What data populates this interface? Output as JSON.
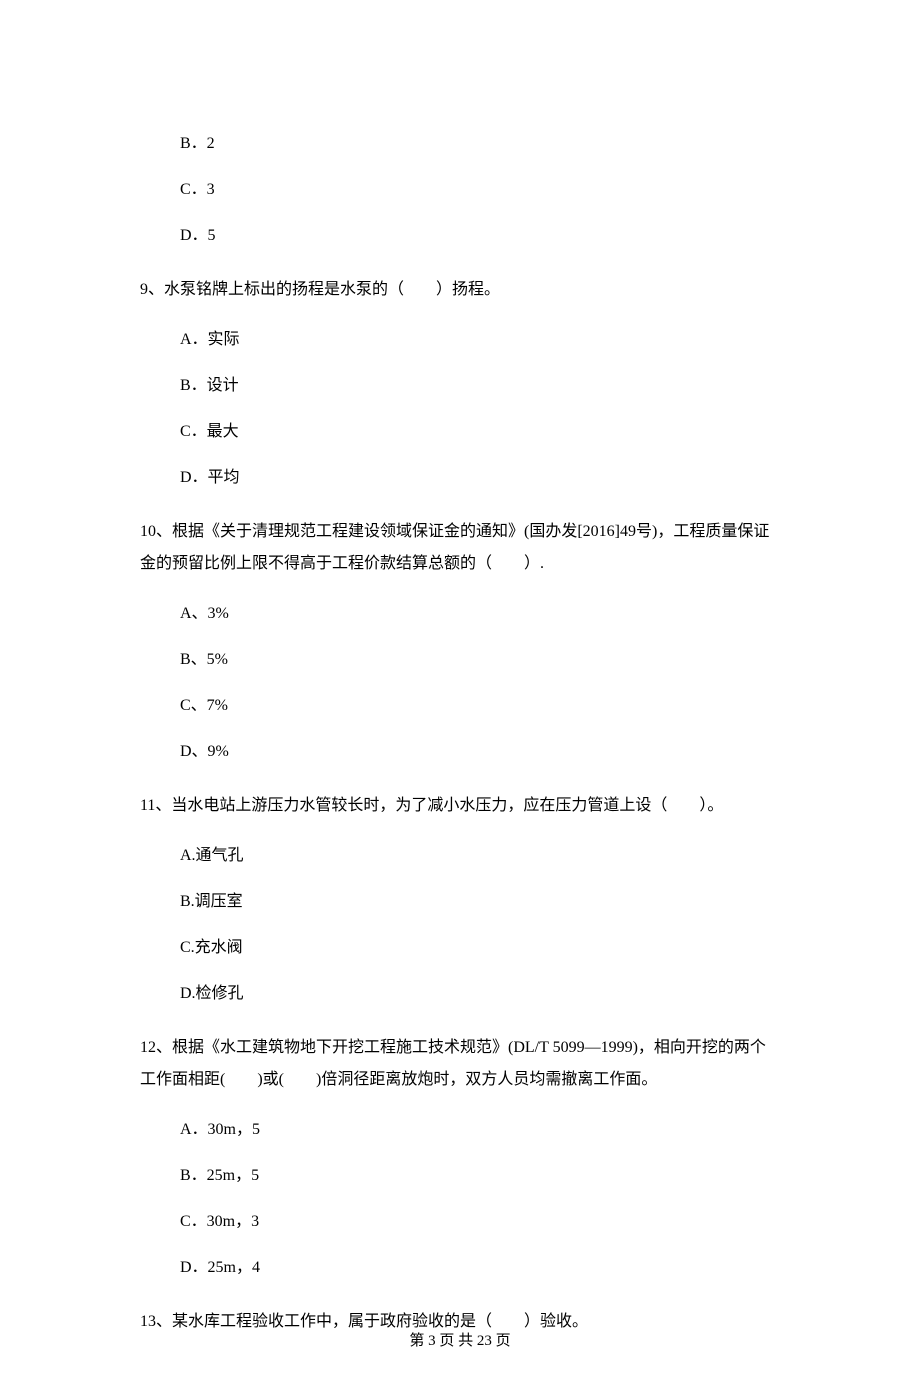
{
  "options_block_1": {
    "b": "B．2",
    "c": "C．3",
    "d": "D．5"
  },
  "q9": {
    "text": "9、水泵铭牌上标出的扬程是水泵的（　　）扬程。",
    "a": "A．实际",
    "b": "B．设计",
    "c": "C．最大",
    "d": "D．平均"
  },
  "q10": {
    "text": "10、根据《关于清理规范工程建设领域保证金的通知》(国办发[2016]49号)，工程质量保证金的预留比例上限不得高于工程价款结算总额的（　　）.",
    "a": "A、3%",
    "b": "B、5%",
    "c": "C、7%",
    "d": "D、9%"
  },
  "q11": {
    "text": "11、当水电站上游压力水管较长时，为了减小水压力，应在压力管道上设（　　）。",
    "a": "A.通气孔",
    "b": "B.调压室",
    "c": "C.充水阀",
    "d": "D.检修孔"
  },
  "q12": {
    "text": "12、根据《水工建筑物地下开挖工程施工技术规范》(DL/T 5099—1999)，相向开挖的两个工作面相距(　　)或(　　)倍洞径距离放炮时，双方人员均需撤离工作面。",
    "a": "A．30m，5",
    "b": "B．25m，5",
    "c": "C．30m，3",
    "d": "D．25m，4"
  },
  "q13": {
    "text": "13、某水库工程验收工作中，属于政府验收的是（　　）验收。"
  },
  "footer": "第 3 页 共 23 页"
}
